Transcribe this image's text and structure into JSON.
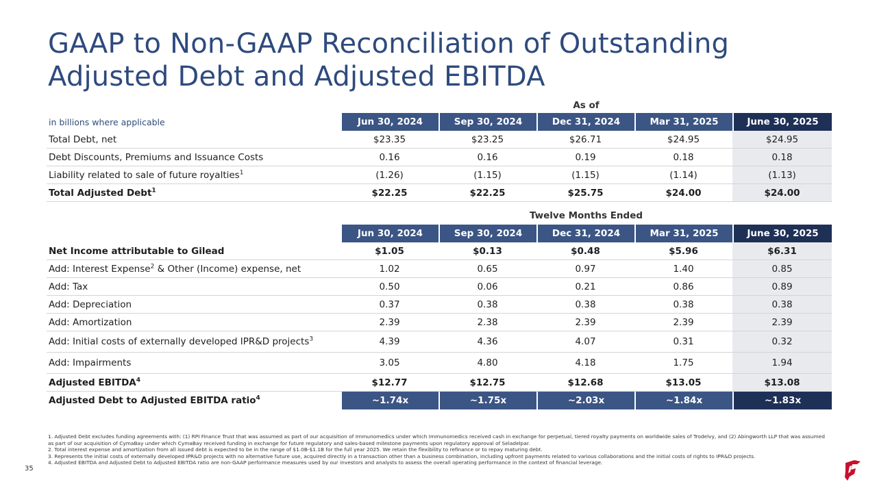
{
  "title": "GAAP to Non-GAAP Reconciliation of Outstanding Adjusted Debt and Adjusted EBITDA",
  "debt_table": {
    "section_label": "As of",
    "unit_label": "in billions where applicable",
    "columns": [
      "Jun 30, 2024",
      "Sep 30, 2024",
      "Dec 31, 2024",
      "Mar 31, 2025",
      "June 30, 2025"
    ],
    "rows": [
      {
        "label": "Total Debt, net",
        "sup": "",
        "values": [
          "$23.35",
          "$23.25",
          "$26.71",
          "$24.95",
          "$24.95"
        ]
      },
      {
        "label": "Debt Discounts, Premiums and Issuance Costs",
        "sup": "",
        "values": [
          "0.16",
          "0.16",
          "0.19",
          "0.18",
          "0.18"
        ]
      },
      {
        "label": "Liability related to sale of future royalties",
        "sup": "1",
        "values": [
          "(1.26)",
          "(1.15)",
          "(1.15)",
          "(1.14)",
          "(1.13)"
        ]
      },
      {
        "label": "Total Adjusted Debt",
        "sup": "1",
        "values": [
          "$22.25",
          "$22.25",
          "$25.75",
          "$24.00",
          "$24.00"
        ]
      }
    ]
  },
  "ebitda_table": {
    "section_label": "Twelve Months Ended",
    "columns": [
      "Jun 30, 2024",
      "Sep 30, 2024",
      "Dec 31, 2024",
      "Mar 31, 2025",
      "June 30, 2025"
    ],
    "rows": [
      {
        "label": "Net Income attributable to Gilead",
        "values": [
          "$1.05",
          "$0.13",
          "$0.48",
          "$5.96",
          "$6.31"
        ]
      },
      {
        "label_pre": "Add: Interest Expense",
        "sup": "2",
        "label_post": " & Other (Income) expense, net",
        "values": [
          "1.02",
          "0.65",
          "0.97",
          "1.40",
          "0.85"
        ]
      },
      {
        "label": "Add: Tax",
        "values": [
          "0.50",
          "0.06",
          "0.21",
          "0.86",
          "0.89"
        ]
      },
      {
        "label": "Add: Depreciation",
        "values": [
          "0.37",
          "0.38",
          "0.38",
          "0.38",
          "0.38"
        ]
      },
      {
        "label": "Add: Amortization",
        "values": [
          "2.39",
          "2.38",
          "2.39",
          "2.39",
          "2.39"
        ]
      },
      {
        "label": "Add: Initial costs of externally developed IPR&D projects",
        "sup": "3",
        "values": [
          "4.39",
          "4.36",
          "4.07",
          "0.31",
          "0.32"
        ]
      },
      {
        "label": "Add: Impairments",
        "values": [
          "3.05",
          "4.80",
          "4.18",
          "1.75",
          "1.94"
        ]
      },
      {
        "label": "Adjusted EBITDA",
        "sup": "4",
        "values": [
          "$12.77",
          "$12.75",
          "$12.68",
          "$13.05",
          "$13.08"
        ]
      },
      {
        "label": "Adjusted Debt to Adjusted EBITDA ratio",
        "sup": "4",
        "values": [
          "~1.74x",
          "~1.75x",
          "~2.03x",
          "~1.84x",
          "~1.83x"
        ]
      }
    ]
  },
  "footnotes": [
    "1. Adjusted Debt excludes funding agreements with: (1) RPI Finance Trust that was assumed as part of our acquisition of Immunomedics under which Immunomedics received cash in exchange for perpetual, tiered royalty payments on worldwide sales of Trodelvy, and (2) Abingworth LLP that was assumed as part of our acquisition of CymaBay under which CymaBay received funding in exchange for future regulatory and sales-based milestone payments upon regulatory approval of Seladelpar.",
    "2. Total interest expense and amortization from all issued debt is expected to be in the range of $1.0B-$1.1B for the full year 2025. We retain the flexibility to refinance or to repay maturing debt.",
    "3. Represents the initial costs of externally developed IPR&D projects with no alternative future use, acquired directly in a transaction other than a business combination, including upfront payments related to various collaborations and the initial costs of rights to IPR&D projects.",
    "4. Adjusted EBITDA and Adjusted Debt to Adjusted EBITDA ratio are non-GAAP performance measures used by our investors and analysts to assess the overall operating performance in the context of financial leverage."
  ],
  "page_number": "35",
  "logo_icon": "gilead-logo-icon",
  "colors": {
    "title": "#2e4a7d",
    "header": "#3b5584",
    "header_current": "#1f3057",
    "current_col_bg": "#e8eaee",
    "logo": "#c8102e"
  }
}
